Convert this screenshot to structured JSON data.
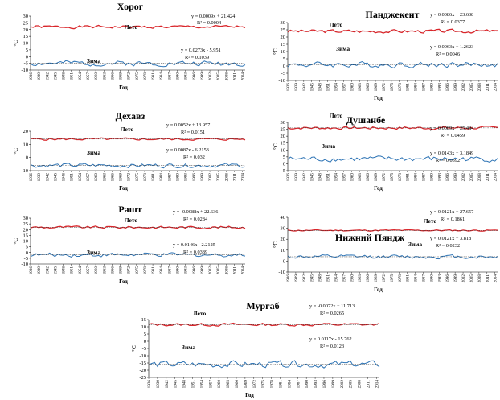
{
  "chart_data": [
    {
      "type": "line",
      "title": "Хорог",
      "xlabel": "Год",
      "ylabel": "°C",
      "ylim": [
        -10,
        30
      ],
      "yticks": [
        -10,
        -5,
        0,
        5,
        10,
        15,
        20,
        25,
        30
      ],
      "xticks": [
        "1936",
        "1939",
        "1942",
        "1945",
        "1948",
        "1951",
        "1954",
        "1957",
        "1960",
        "1963",
        "1966",
        "1969",
        "1972",
        "1975",
        "1978",
        "1981",
        "1984",
        "1987",
        "1990",
        "1993",
        "1996",
        "1999",
        "2002",
        "2005",
        "2008",
        "2011",
        "2014"
      ],
      "x": [
        1936,
        2015
      ],
      "grid": false,
      "series": [
        {
          "name": "Лето",
          "color": "#d9262b",
          "mean": 22,
          "amp": 1.0,
          "seed": 1,
          "equation": "y = 0.0009x  + 21.424",
          "r2": "R² = 0.0004"
        },
        {
          "name": "Зима",
          "color": "#2e74b5",
          "mean": -5,
          "amp": 1.8,
          "seed": 2,
          "equation": "y = 0.0273x  - 5.951",
          "r2": "R² = 0.1039"
        }
      ]
    },
    {
      "type": "line",
      "title": "Пандже­кент",
      "xlabel": "Год",
      "ylabel": "°C",
      "ylim": [
        -10,
        30
      ],
      "yticks": [
        -10,
        -5,
        0,
        5,
        10,
        15,
        20,
        25,
        30
      ],
      "xticks": [
        "1936",
        "1939",
        "1942",
        "1945",
        "1948",
        "1951",
        "1954",
        "1957",
        "1960",
        "1963",
        "1966",
        "1969",
        "1972",
        "1975",
        "1978",
        "1981",
        "1984",
        "1987",
        "1990",
        "1993",
        "1996",
        "1999",
        "2002",
        "2005",
        "2008",
        "2011",
        "2014"
      ],
      "x": [
        1936,
        2015
      ],
      "grid": false,
      "series": [
        {
          "name": "Лето",
          "color": "#d9262b",
          "mean": 24,
          "amp": 1.1,
          "seed": 3,
          "equation": "y = 0.0086x  + 23.638",
          "r2": "R² = 0.0377"
        },
        {
          "name": "Зима",
          "color": "#2e74b5",
          "mean": 1,
          "amp": 1.8,
          "seed": 4,
          "equation": "y = 0.0063x  + 1.2623",
          "r2": "R² = 0.0046"
        }
      ]
    },
    {
      "type": "line",
      "title": "Дехавз",
      "xlabel": "Год",
      "ylabel": "°C",
      "ylim": [
        -10,
        20
      ],
      "yticks": [
        -10,
        0,
        10,
        20
      ],
      "xticks": [
        "1936",
        "1939",
        "1942",
        "1945",
        "1948",
        "1951",
        "1954",
        "1957",
        "1960",
        "1963",
        "1966",
        "1969",
        "1972",
        "1975",
        "1978",
        "1981",
        "1984",
        "1987",
        "1990",
        "1993",
        "1996",
        "1999",
        "2002",
        "2005",
        "2008",
        "2011",
        "2014"
      ],
      "x": [
        1936,
        2015
      ],
      "grid": false,
      "series": [
        {
          "name": "Лето",
          "color": "#d9262b",
          "mean": 14,
          "amp": 0.8,
          "seed": 5,
          "equation": "y = 0.0052x  + 13.957",
          "r2": "R² = 0.0151"
        },
        {
          "name": "Зима",
          "color": "#2e74b5",
          "mean": -6,
          "amp": 1.5,
          "seed": 6,
          "equation": "y = 0.0087x  - 6.2153",
          "r2": "R² = 0.032"
        }
      ]
    },
    {
      "type": "line",
      "title": "Душанбе",
      "xlabel": "Год",
      "ylabel": "°C",
      "ylim": [
        -5,
        30
      ],
      "yticks": [
        -5,
        0,
        5,
        10,
        15,
        20,
        25,
        30
      ],
      "xticks": [
        "1936",
        "1939",
        "1942",
        "1945",
        "1948",
        "1951",
        "1954",
        "1957",
        "1960",
        "1963",
        "1966",
        "1969",
        "1972",
        "1975",
        "1978",
        "1981",
        "1984",
        "1987",
        "1990",
        "1993",
        "1996",
        "1999",
        "2002",
        "2005",
        "2008",
        "2011",
        "2014"
      ],
      "x": [
        1936,
        2015
      ],
      "grid": false,
      "series": [
        {
          "name": "Лето",
          "color": "#d9262b",
          "mean": 26,
          "amp": 1.0,
          "seed": 7,
          "equation": "y = 0.0089x  + 25.484",
          "r2": "R² = 0.0459"
        },
        {
          "name": "Зима",
          "color": "#2e74b5",
          "mean": 3.5,
          "amp": 1.8,
          "seed": 8,
          "equation": "y = 0.0143x  + 3.1849",
          "r2": "R² = 0.0392"
        }
      ]
    },
    {
      "type": "line",
      "title": "Рашт",
      "xlabel": "Год",
      "ylabel": "°C",
      "ylim": [
        -10,
        30
      ],
      "yticks": [
        -10,
        -5,
        0,
        5,
        10,
        15,
        20,
        25,
        30
      ],
      "xticks": [
        "1936",
        "1939",
        "1942",
        "1945",
        "1948",
        "1951",
        "1954",
        "1957",
        "1960",
        "1963",
        "1966",
        "1969",
        "1972",
        "1975",
        "1978",
        "1981",
        "1984",
        "1987",
        "1990",
        "1993",
        "1996",
        "1999",
        "2002",
        "2005",
        "2008",
        "2011",
        "2014"
      ],
      "x": [
        1936,
        2015
      ],
      "grid": false,
      "series": [
        {
          "name": "Лето",
          "color": "#d9262b",
          "mean": 22,
          "amp": 1.0,
          "seed": 9,
          "equation": "y = -0.0088x  + 22.636",
          "r2": "R² = 0.0284"
        },
        {
          "name": "Зима",
          "color": "#2e74b5",
          "mean": -2,
          "amp": 1.6,
          "seed": 10,
          "equation": "y = 0.0146x  - 2.2125",
          "r2": "R² = 0.0389"
        }
      ]
    },
    {
      "type": "line",
      "title": "Нижний Пяндж",
      "xlabel": "Год",
      "ylabel": "°C",
      "ylim": [
        -10,
        40
      ],
      "yticks": [
        -10,
        0,
        10,
        20,
        30,
        40
      ],
      "xticks": [
        "1936",
        "1939",
        "1942",
        "1945",
        "1948",
        "1951",
        "1954",
        "1957",
        "1960",
        "1963",
        "1966",
        "1969",
        "1972",
        "1975",
        "1978",
        "1981",
        "1984",
        "1987",
        "1990",
        "1993",
        "1996",
        "1999",
        "2002",
        "2005",
        "2008",
        "2011",
        "2014"
      ],
      "x": [
        1936,
        2015
      ],
      "grid": false,
      "series": [
        {
          "name": "Лето",
          "color": "#d9262b",
          "mean": 28,
          "amp": 0.6,
          "seed": 11,
          "equation": "y = 0.0121x  + 27.657",
          "r2": "R² = 0.1861"
        },
        {
          "name": "Зима",
          "color": "#2e74b5",
          "mean": 4,
          "amp": 1.6,
          "seed": 12,
          "equation": "y = 0.0121x  + 3.818",
          "r2": "R² = 0.0232"
        }
      ]
    },
    {
      "type": "line",
      "title": "Мургаб",
      "xlabel": "Год",
      "ylabel": "°C",
      "ylim": [
        -25,
        15
      ],
      "yticks": [
        -25,
        -20,
        -15,
        -10,
        -5,
        0,
        5,
        10,
        15
      ],
      "xticks": [
        "1936",
        "1939",
        "1942",
        "1945",
        "1948",
        "1951",
        "1954",
        "1957",
        "1960",
        "1963",
        "1966",
        "1969",
        "1972",
        "1975",
        "1978",
        "1981",
        "1984",
        "1987",
        "1990",
        "1993",
        "1996",
        "1999",
        "2002",
        "2005",
        "2008",
        "2011",
        "2014"
      ],
      "x": [
        1936,
        2015
      ],
      "grid": false,
      "series": [
        {
          "name": "Лето",
          "color": "#d9262b",
          "mean": 11.5,
          "amp": 0.9,
          "seed": 13,
          "equation": "y = -0.0072x  + 11.713",
          "r2": "R² = 0.0265"
        },
        {
          "name": "Зима",
          "color": "#2e74b5",
          "mean": -16,
          "amp": 2.2,
          "seed": 14,
          "equation": "y = 0.0117x  - 15.762",
          "r2": "R² = 0.0123"
        }
      ]
    }
  ]
}
